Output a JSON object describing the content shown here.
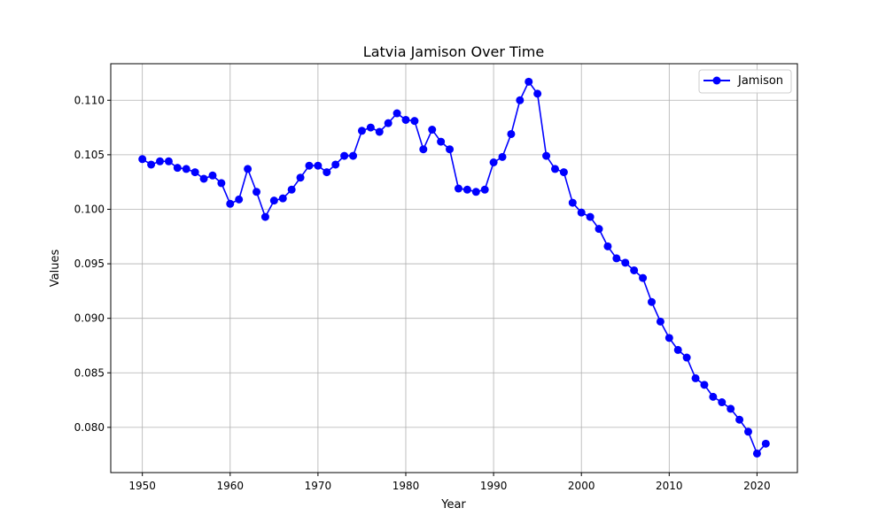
{
  "chart_data": {
    "type": "line",
    "title": "Latvia Jamison Over Time",
    "xlabel": "Year",
    "ylabel": "Values",
    "xlim": [
      1946.4,
      2024.6
    ],
    "ylim": [
      0.07585,
      0.11335
    ],
    "xticks": [
      1950,
      1960,
      1970,
      1980,
      1990,
      2000,
      2010,
      2020
    ],
    "yticks": [
      0.08,
      0.085,
      0.09,
      0.095,
      0.1,
      0.105,
      0.11
    ],
    "ytick_labels": [
      "0.080",
      "0.085",
      "0.090",
      "0.095",
      "0.100",
      "0.105",
      "0.110"
    ],
    "grid": true,
    "legend_position": "top-right",
    "series": [
      {
        "name": "Jamison",
        "color": "#0000ff",
        "marker": "circle",
        "x": [
          1950,
          1951,
          1952,
          1953,
          1954,
          1955,
          1956,
          1957,
          1958,
          1959,
          1960,
          1961,
          1962,
          1963,
          1964,
          1965,
          1966,
          1967,
          1968,
          1969,
          1970,
          1971,
          1972,
          1973,
          1974,
          1975,
          1976,
          1977,
          1978,
          1979,
          1980,
          1981,
          1982,
          1983,
          1984,
          1985,
          1986,
          1987,
          1988,
          1989,
          1990,
          1991,
          1992,
          1993,
          1994,
          1995,
          1996,
          1997,
          1998,
          1999,
          2000,
          2001,
          2002,
          2003,
          2004,
          2005,
          2006,
          2007,
          2008,
          2009,
          2010,
          2011,
          2012,
          2013,
          2014,
          2015,
          2016,
          2017,
          2018,
          2019,
          2020,
          2021
        ],
        "values": [
          0.1046,
          0.1041,
          0.1044,
          0.1044,
          0.1038,
          0.1037,
          0.1034,
          0.1028,
          0.1031,
          0.1024,
          0.1005,
          0.1009,
          0.1037,
          0.1016,
          0.0993,
          0.1008,
          0.101,
          0.1018,
          0.1029,
          0.104,
          0.104,
          0.1034,
          0.1041,
          0.1049,
          0.1049,
          0.1072,
          0.1075,
          0.1071,
          0.1079,
          0.1088,
          0.1082,
          0.1081,
          0.1055,
          0.1073,
          0.1062,
          0.1055,
          0.1019,
          0.1018,
          0.1016,
          0.1018,
          0.1043,
          0.1048,
          0.1069,
          0.11,
          0.1117,
          0.1106,
          0.1049,
          0.1037,
          0.1034,
          0.1006,
          0.0997,
          0.0993,
          0.0982,
          0.0966,
          0.0955,
          0.0951,
          0.0944,
          0.0937,
          0.0915,
          0.0897,
          0.0882,
          0.0871,
          0.0864,
          0.0845,
          0.0839,
          0.0828,
          0.0823,
          0.0817,
          0.0807,
          0.0796,
          0.0776,
          0.0785
        ]
      }
    ]
  }
}
